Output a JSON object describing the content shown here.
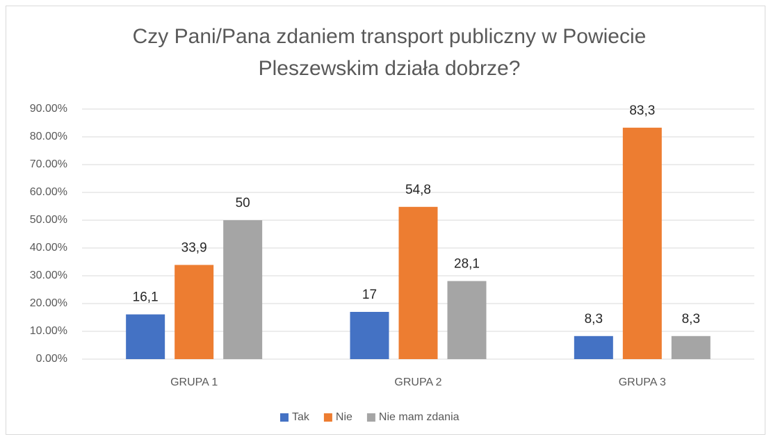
{
  "chart_data": {
    "type": "bar",
    "title": "Czy Pani/Pana zdaniem transport publiczny w Powiecie Pleszewskim działa dobrze?",
    "categories": [
      "GRUPA 1",
      "GRUPA 2",
      "GRUPA 3"
    ],
    "series": [
      {
        "name": "Tak",
        "color": "#4472c4",
        "values": [
          16.1,
          17,
          8.3
        ],
        "value_labels": [
          "16,1",
          "17",
          "8,3"
        ]
      },
      {
        "name": "Nie",
        "color": "#ed7d31",
        "values": [
          33.9,
          54.8,
          83.3
        ],
        "value_labels": [
          "33,9",
          "54,8",
          "83,3"
        ]
      },
      {
        "name": "Nie mam zdania",
        "color": "#a5a5a5",
        "values": [
          50,
          28.1,
          8.3
        ],
        "value_labels": [
          "50",
          "28,1",
          "8,3"
        ]
      }
    ],
    "ylim": [
      0,
      90
    ],
    "yticks": [
      {
        "value": 0,
        "label": "0.00%"
      },
      {
        "value": 10,
        "label": "10.00%"
      },
      {
        "value": 20,
        "label": "20.00%"
      },
      {
        "value": 30,
        "label": "30.00%"
      },
      {
        "value": 40,
        "label": "40.00%"
      },
      {
        "value": 50,
        "label": "50.00%"
      },
      {
        "value": 60,
        "label": "60.00%"
      },
      {
        "value": 70,
        "label": "70.00%"
      },
      {
        "value": 80,
        "label": "80.00%"
      },
      {
        "value": 90,
        "label": "90.00%"
      }
    ],
    "grid": true,
    "legend": "bottom"
  }
}
